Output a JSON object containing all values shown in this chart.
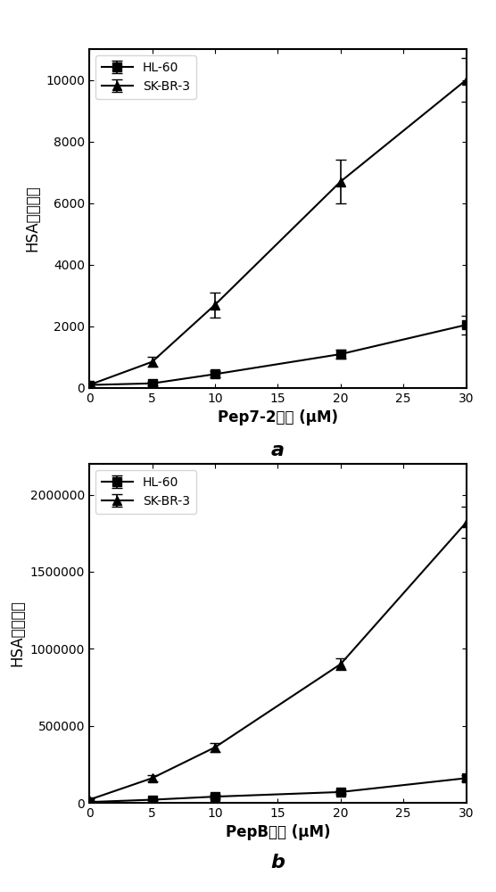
{
  "chart_a": {
    "title_label": "a",
    "xlabel": "Pep7-2浓度 (μM)",
    "ylabel": "HSA结合强度",
    "x": [
      0,
      5,
      10,
      20,
      30
    ],
    "hl60_y": [
      100,
      150,
      450,
      1100,
      2050
    ],
    "hl60_err": [
      50,
      50,
      100,
      150,
      300
    ],
    "skbr3_y": [
      100,
      850,
      2700,
      6700,
      10000
    ],
    "skbr3_err": [
      50,
      150,
      400,
      700,
      700
    ],
    "ylim": [
      0,
      11000
    ],
    "yticks": [
      0,
      2000,
      4000,
      6000,
      8000,
      10000
    ],
    "xlim": [
      0,
      30
    ],
    "xticks": [
      0,
      5,
      10,
      15,
      20,
      25,
      30
    ]
  },
  "chart_b": {
    "title_label": "b",
    "xlabel": "PepB浓度 (μM)",
    "ylabel": "HSA结合强度",
    "x": [
      0,
      5,
      10,
      20,
      30
    ],
    "hl60_y": [
      5000,
      20000,
      40000,
      70000,
      160000
    ],
    "hl60_err": [
      5000,
      5000,
      10000,
      10000,
      20000
    ],
    "skbr3_y": [
      20000,
      160000,
      360000,
      900000,
      1820000
    ],
    "skbr3_err": [
      10000,
      20000,
      30000,
      40000,
      100000
    ],
    "ylim": [
      0,
      2200000
    ],
    "yticks": [
      0,
      500000,
      1000000,
      1500000,
      2000000
    ],
    "ytick_labels": [
      "0",
      "500000",
      "1000000",
      "1500000",
      "2000000"
    ],
    "xlim": [
      0,
      30
    ],
    "xticks": [
      0,
      5,
      10,
      15,
      20,
      25,
      30
    ]
  },
  "line_color": "#000000",
  "hl60_marker": "s",
  "skbr3_marker": "^",
  "marker_size": 7,
  "line_width": 1.5,
  "capsize": 4,
  "legend_hl60": "HL-60",
  "legend_skbr3": "SK-BR-3",
  "bg_color": "#ffffff"
}
